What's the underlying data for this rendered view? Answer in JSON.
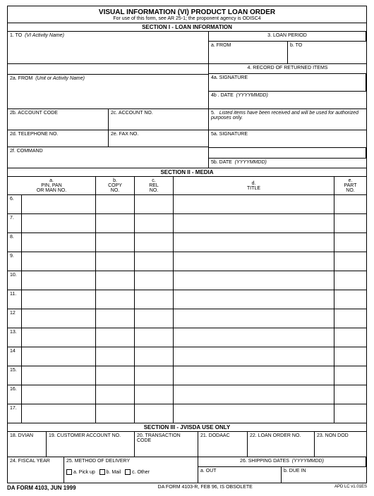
{
  "title": "VISUAL INFORMATION (VI) PRODUCT LOAN ORDER",
  "subtitle": "For use of this form, see AR 25-1; the proponent agency is ODISC4",
  "section1_hdr": "SECTION I - LOAN INFORMATION",
  "s1": {
    "f1": "1. TO",
    "f1_hint": "(VI Activity Name)",
    "f3": "3.  LOAN PERIOD",
    "f3a": "a. FROM",
    "f3b": "b. TO",
    "f4": "4.   RECORD OF RETURNED ITEMS",
    "f2a": "2a. FROM",
    "f2a_hint": "(Unit or Activity Name)",
    "f4a": "4a. SIGNATURE",
    "f4b": "4b . DATE",
    "f4b_hint": "(YYYYMMDD)",
    "f2b": "2b. ACCOUNT CODE",
    "f2c": "2c. ACCOUNT NO.",
    "f5": "5.",
    "f5_text": "Listed items have been received and will be used for authorized purposes only.",
    "f2d": "2d. TELEPHONE NO.",
    "f2e": "2e. FAX NO.",
    "f5a": "5a. SIGNATURE",
    "f2f": "2f. COMMAND",
    "f5b": "5b. DATE",
    "f5b_hint": "(YYYYMMDD)"
  },
  "section2_hdr": "SECTION II - MEDIA",
  "media_cols": {
    "a1": "a.",
    "a2": "PIN, PAN",
    "a3": "OR MAN NO.",
    "b1": "b.",
    "b2": "COPY",
    "b3": "NO.",
    "c1": "c.",
    "c2": "REL",
    "c3": "NO.",
    "d1": "d.",
    "d2": "TITLE",
    "e1": "e.",
    "e2": "PART",
    "e3": "NO."
  },
  "media_rows": [
    "6.",
    "7.",
    "8.",
    "9.",
    "10.",
    "11.",
    "12",
    "13.",
    "14",
    "15.",
    "16.",
    "17."
  ],
  "section3_hdr": "SECTION III - JVISDA USE ONLY",
  "s3": {
    "f18": "18. DVIAN",
    "f19": "19. CUSTOMER ACCOUNT NO.",
    "f20a": "20. TRANSACTION",
    "f20b": "CODE",
    "f21": "21. DODAAC",
    "f22": "22. LOAN ORDER NO.",
    "f23": "23. NON DOD",
    "f24": "24. FISCAL YEAR",
    "f25": "25. METHOD OF DELIVERY",
    "f25a": "a. Pick up",
    "f25b": "b. Mail",
    "f25c": "c. Other",
    "f26": "26. SHIPPING DATES",
    "f26_hint": "(YYYYMMDD)",
    "f26a": "a. OUT",
    "f26b": "b. DUE IN"
  },
  "footer": {
    "left": "DA FORM 4103, JUN 1999",
    "mid": "DA FORM 4103-R, FEB 96, IS OBSOLETE",
    "right": "APD LC v1.01ES"
  }
}
